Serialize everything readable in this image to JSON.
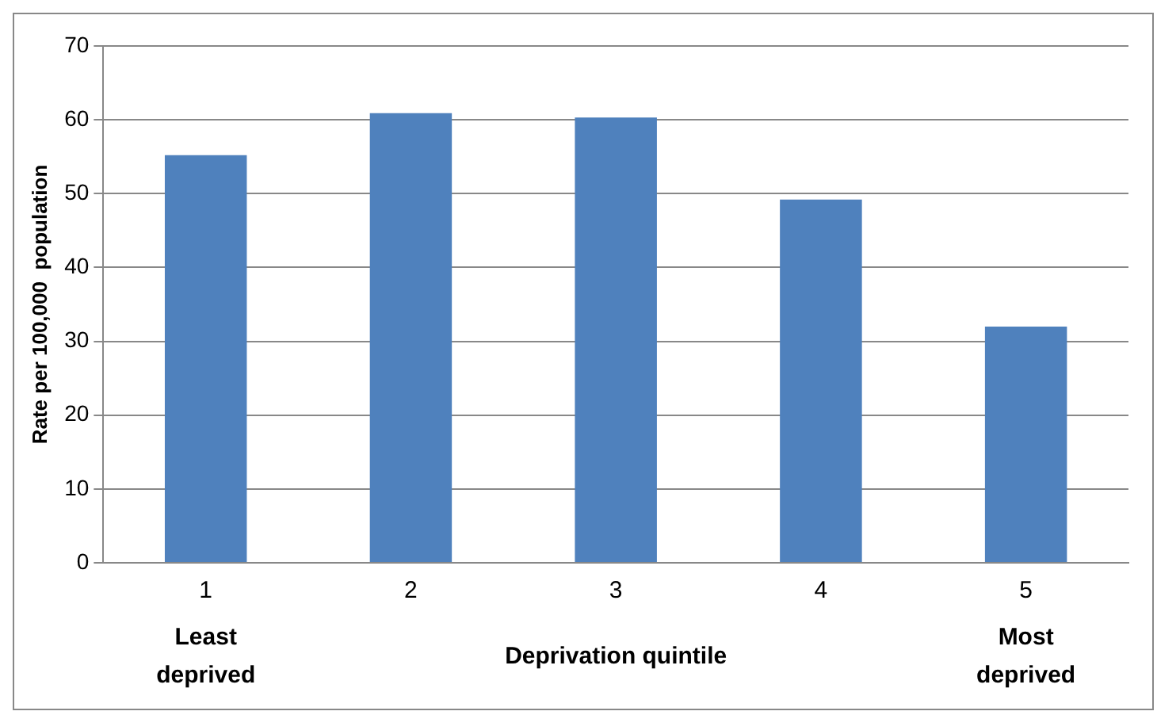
{
  "chart_data": {
    "type": "bar",
    "xlabel": "Deprivation quintile",
    "ylabel": "Rate per 100,000  population",
    "categories": [
      "1",
      "2",
      "3",
      "4",
      "5"
    ],
    "values": [
      55.2,
      60.9,
      60.3,
      49.2,
      32.0
    ],
    "color": "#4f81bd",
    "ylim": [
      0,
      70
    ],
    "yticks": [
      0,
      10,
      20,
      30,
      40,
      50,
      60,
      70
    ],
    "grid": "y",
    "annotations": [
      "Least deprived",
      "Most deprived"
    ]
  }
}
